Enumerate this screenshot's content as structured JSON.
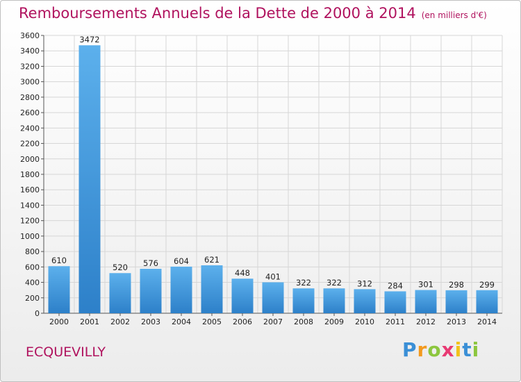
{
  "title": "Remboursements Annuels de la Dette de 2000 à 2014",
  "subtitle": "(en milliers d'€)",
  "commune": "ECQUEVILLY",
  "logo": {
    "text": "Proxiti",
    "letter_colors": [
      "#3a8fd6",
      "#f39a1e",
      "#8cc63e",
      "#e83a73",
      "#f2c21b",
      "#3a8fd6",
      "#8cc63e"
    ]
  },
  "colors": {
    "title": "#b0125e",
    "bar_light": "#5cb0ec",
    "bar_dark": "#2d80c9"
  },
  "chart_data": {
    "type": "bar",
    "categories": [
      "2000",
      "2001",
      "2002",
      "2003",
      "2004",
      "2005",
      "2006",
      "2007",
      "2008",
      "2009",
      "2010",
      "2011",
      "2012",
      "2013",
      "2014"
    ],
    "values": [
      610,
      3472,
      520,
      576,
      604,
      621,
      448,
      401,
      322,
      322,
      312,
      284,
      301,
      298,
      299
    ],
    "ylim": [
      0,
      3600
    ],
    "yticks": [
      0,
      200,
      400,
      600,
      800,
      1000,
      1200,
      1400,
      1600,
      1800,
      2000,
      2200,
      2400,
      2600,
      2800,
      3000,
      3200,
      3400,
      3600
    ],
    "grid": true,
    "legend": "none"
  }
}
